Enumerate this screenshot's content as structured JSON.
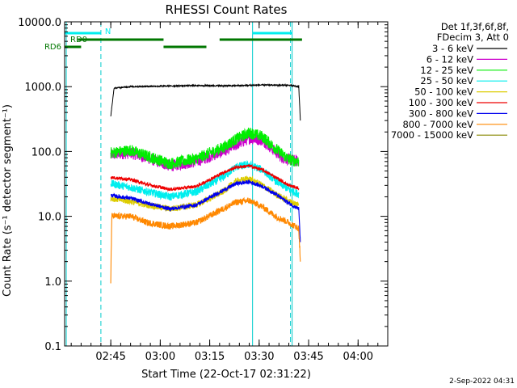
{
  "chart_data": {
    "type": "line",
    "title": "RHESSI Count Rates",
    "xlabel": "Start Time (22-Oct-17 02:31:22)",
    "ylabel": "Count Rate (s⁻¹ detector segment⁻¹)",
    "y_scale": "log",
    "ylim": [
      0.1,
      10000
    ],
    "xlim": [
      "02:31",
      "04:09"
    ],
    "x_ticks": [
      "02:45",
      "03:00",
      "03:15",
      "03:30",
      "03:45",
      "04:00"
    ],
    "y_ticks": [
      "0.1",
      "1.0",
      "10.0",
      "100.0",
      "1000.0",
      "10000.0"
    ],
    "grid": false,
    "legend_header": [
      "Det 1f,3f,6f,8f,",
      "FDecim 3, Att 0"
    ],
    "legend_position": "right",
    "series": [
      {
        "name": "3 - 6 keV",
        "color": "#000000",
        "points": [
          [
            14,
            350
          ],
          [
            15,
            950
          ],
          [
            20,
            1000
          ],
          [
            30,
            1020
          ],
          [
            40,
            1040
          ],
          [
            50,
            1030
          ],
          [
            60,
            1060
          ],
          [
            68,
            1050
          ],
          [
            71,
            1000
          ],
          [
            71.5,
            300
          ]
        ]
      },
      {
        "name": "6 - 12 keV",
        "color": "#cc00cc",
        "points": [
          [
            14,
            90
          ],
          [
            20,
            95
          ],
          [
            25,
            80
          ],
          [
            32,
            60
          ],
          [
            40,
            70
          ],
          [
            48,
            100
          ],
          [
            56,
            160
          ],
          [
            60,
            150
          ],
          [
            66,
            80
          ],
          [
            71,
            70
          ]
        ]
      },
      {
        "name": "12 - 25 keV",
        "color": "#00ee00",
        "points": [
          [
            14,
            95
          ],
          [
            20,
            105
          ],
          [
            25,
            85
          ],
          [
            32,
            65
          ],
          [
            40,
            78
          ],
          [
            48,
            115
          ],
          [
            52,
            155
          ],
          [
            56,
            195
          ],
          [
            60,
            170
          ],
          [
            64,
            110
          ],
          [
            68,
            75
          ],
          [
            71,
            70
          ]
        ]
      },
      {
        "name": "25 - 50 keV",
        "color": "#00eeee",
        "points": [
          [
            14,
            32
          ],
          [
            20,
            28
          ],
          [
            25,
            24
          ],
          [
            32,
            20
          ],
          [
            40,
            24
          ],
          [
            48,
            40
          ],
          [
            52,
            58
          ],
          [
            56,
            63
          ],
          [
            60,
            52
          ],
          [
            64,
            35
          ],
          [
            68,
            26
          ],
          [
            71,
            22
          ]
        ]
      },
      {
        "name": "50 - 100 keV",
        "color": "#ddcc00",
        "points": [
          [
            14,
            19
          ],
          [
            20,
            17
          ],
          [
            25,
            15
          ],
          [
            32,
            13
          ],
          [
            40,
            15
          ],
          [
            48,
            24
          ],
          [
            52,
            35
          ],
          [
            56,
            38
          ],
          [
            60,
            30
          ],
          [
            64,
            22
          ],
          [
            68,
            17
          ],
          [
            71,
            15
          ]
        ]
      },
      {
        "name": "100 - 300 keV",
        "color": "#ee0000",
        "points": [
          [
            14,
            40
          ],
          [
            20,
            37
          ],
          [
            25,
            31
          ],
          [
            32,
            26
          ],
          [
            40,
            29
          ],
          [
            48,
            47
          ],
          [
            52,
            57
          ],
          [
            56,
            60
          ],
          [
            60,
            52
          ],
          [
            64,
            40
          ],
          [
            68,
            30
          ],
          [
            71,
            27
          ]
        ]
      },
      {
        "name": "300 - 800 keV",
        "color": "#0000ee",
        "points": [
          [
            14,
            21
          ],
          [
            20,
            19
          ],
          [
            25,
            16
          ],
          [
            32,
            13
          ],
          [
            40,
            15
          ],
          [
            48,
            25
          ],
          [
            52,
            32
          ],
          [
            56,
            34
          ],
          [
            60,
            29
          ],
          [
            64,
            22
          ],
          [
            68,
            16
          ],
          [
            71,
            13
          ],
          [
            71.5,
            4
          ]
        ]
      },
      {
        "name": "800 - 7000 keV",
        "color": "#ff8800",
        "points": [
          [
            14,
            1
          ],
          [
            14.3,
            10
          ],
          [
            20,
            10
          ],
          [
            25,
            8
          ],
          [
            32,
            7
          ],
          [
            40,
            8
          ],
          [
            48,
            13
          ],
          [
            52,
            16.5
          ],
          [
            56,
            17.5
          ],
          [
            60,
            14
          ],
          [
            64,
            10
          ],
          [
            68,
            8
          ],
          [
            71,
            6.5
          ],
          [
            71.5,
            2
          ]
        ]
      },
      {
        "name": "7000 - 15000 keV",
        "color": "#888800",
        "points": []
      }
    ],
    "night_intervals": [
      [
        0,
        0.5
      ],
      [
        57,
        69
      ]
    ],
    "saa_lines": [
      11,
      68.5
    ],
    "markers": [
      {
        "label": "N",
        "color": "#00eeee",
        "segments": [
          [
            0,
            11
          ],
          [
            57,
            69
          ]
        ]
      },
      {
        "label": "RD0",
        "color": "#007700",
        "segments": [
          [
            4,
            30
          ],
          [
            47,
            72
          ]
        ]
      },
      {
        "label": "RD6",
        "color": "#007700",
        "segments": [
          [
            0,
            5
          ],
          [
            30,
            43
          ]
        ]
      }
    ],
    "footer_date": "2-Sep-2022 04:31"
  }
}
